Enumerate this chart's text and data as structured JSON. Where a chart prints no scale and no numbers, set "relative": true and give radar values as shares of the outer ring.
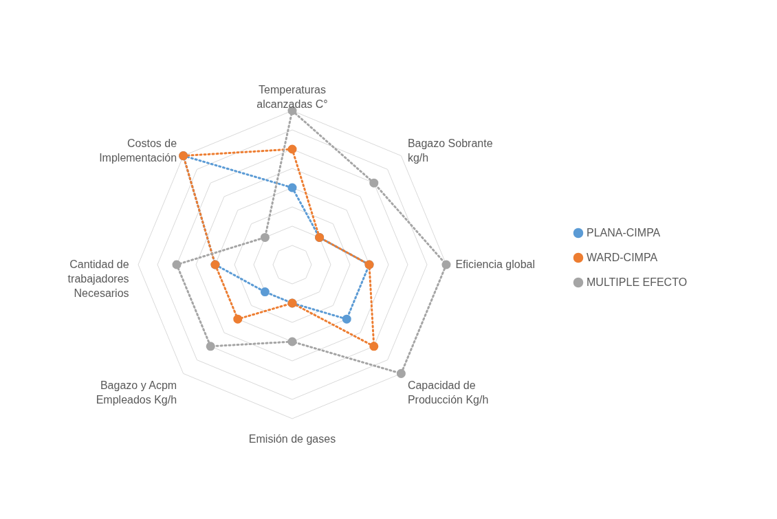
{
  "chart_data": {
    "type": "radar",
    "relative": true,
    "legend": "right",
    "marker": "circle",
    "line_style": "dotted",
    "categories": [
      "Temperaturas\nalcanzadas C°",
      "Bagazo Sobrante\nkg/h",
      "Eficiencia global",
      "Capacidad de\nProducción Kg/h",
      "Emisión de gases",
      "Bagazo y Acpm\nEmpleados Kg/h",
      "Cantidad de\ntrabajadores\nNecesarios",
      "Costos de\nImplementación"
    ],
    "series": [
      {
        "name": "PLANA-CIMPA",
        "color": "#5b9bd5",
        "values": [
          0.5,
          0.25,
          0.5,
          0.5,
          0.25,
          0.25,
          0.5,
          1
        ]
      },
      {
        "name": "WARD-CIMPA",
        "color": "#ed7d31",
        "values": [
          0.75,
          0.25,
          0.5,
          0.75,
          0.25,
          0.5,
          0.5,
          1
        ]
      },
      {
        "name": "MULTIPLE EFECTO",
        "color": "#a5a5a5",
        "values": [
          1,
          0.75,
          1,
          1,
          0.5,
          0.75,
          0.75,
          0.25
        ]
      }
    ]
  }
}
